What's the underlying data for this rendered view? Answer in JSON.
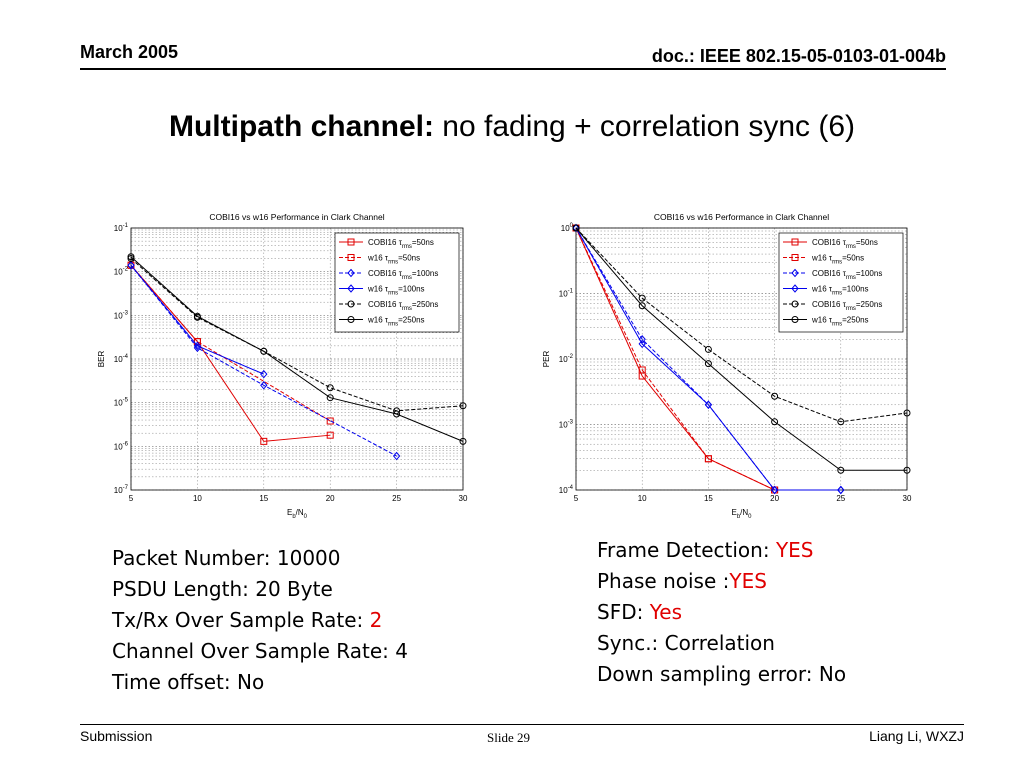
{
  "header": {
    "date": "March 2005",
    "doc": "doc.: IEEE 802.15-05-0103-01-004b"
  },
  "title": {
    "bold": "Multipath channel:",
    "rest": " no fading + correlation sync (6)"
  },
  "colors": {
    "red": "#e00000",
    "blue": "#0000ee",
    "black": "#000000"
  },
  "chart_data": [
    {
      "type": "line",
      "title": "COBI16 vs w16 Performance in Clark Channel",
      "ylabel": "BER",
      "xlabel_main": "E",
      "xlabel_sub1": "b",
      "xlabel_mid": "/N",
      "xlabel_sub2": "0",
      "xlim": [
        5,
        30
      ],
      "ylim_exp": [
        -7,
        -1
      ],
      "yscale": "log",
      "x_ticks": [
        "5",
        "10",
        "15",
        "20",
        "25",
        "30"
      ],
      "y_ticks": [
        {
          "base": "10",
          "exp": "-7"
        },
        {
          "base": "10",
          "exp": "-6"
        },
        {
          "base": "10",
          "exp": "-5"
        },
        {
          "base": "10",
          "exp": "-4"
        },
        {
          "base": "10",
          "exp": "-3"
        },
        {
          "base": "10",
          "exp": "-2"
        },
        {
          "base": "10",
          "exp": "-1"
        }
      ],
      "grid": true,
      "legend_position": "top-right",
      "series": [
        {
          "name": "COBI16 τrms=50ns",
          "legend_prefix": "COBI16 ",
          "legend_sub": "rms",
          "legend_suffix": "=50ns",
          "color": "#e00000",
          "dash": false,
          "marker": "square",
          "points": [
            [
              5,
              0.014
            ],
            [
              10,
              0.00025
            ],
            [
              15,
              1.3e-06
            ],
            [
              20,
              1.8e-06
            ]
          ]
        },
        {
          "name": "w16 τrms=50ns",
          "legend_prefix": "w16 ",
          "legend_sub": "rms",
          "legend_suffix": "=50ns",
          "color": "#e00000",
          "dash": true,
          "marker": "square",
          "points": [
            [
              5,
              0.014
            ],
            [
              10,
              0.00025
            ],
            [
              20,
              3.8e-06
            ]
          ]
        },
        {
          "name": "COBI16 τrms=100ns",
          "legend_prefix": "COBI16 ",
          "legend_sub": "rms",
          "legend_suffix": "=100ns",
          "color": "#0000ee",
          "dash": true,
          "marker": "diamond",
          "points": [
            [
              5,
              0.014
            ],
            [
              10,
              0.00018
            ],
            [
              15,
              2.5e-05
            ],
            [
              25,
              6e-07
            ]
          ]
        },
        {
          "name": "w16 τrms=100ns",
          "legend_prefix": "w16 ",
          "legend_sub": "rms",
          "legend_suffix": "=100ns",
          "color": "#0000ee",
          "dash": false,
          "marker": "diamond",
          "points": [
            [
              5,
              0.014
            ],
            [
              10,
              0.0002
            ],
            [
              15,
              4.5e-05
            ]
          ]
        },
        {
          "name": "COBI16 τrms=250ns",
          "legend_prefix": "COBI16 ",
          "legend_sub": "rms",
          "legend_suffix": "=250ns",
          "color": "#000000",
          "dash": true,
          "marker": "circle",
          "points": [
            [
              5,
              0.02
            ],
            [
              10,
              0.0009
            ],
            [
              15,
              0.00015
            ],
            [
              20,
              2.2e-05
            ],
            [
              25,
              6.5e-06
            ],
            [
              30,
              8.5e-06
            ]
          ]
        },
        {
          "name": "w16 τrms=250ns",
          "legend_prefix": "w16 ",
          "legend_sub": "rms",
          "legend_suffix": "=250ns",
          "color": "#000000",
          "dash": false,
          "marker": "circle",
          "points": [
            [
              5,
              0.022
            ],
            [
              10,
              0.00095
            ],
            [
              15,
              0.00015
            ],
            [
              20,
              1.3e-05
            ],
            [
              25,
              5.5e-06
            ],
            [
              30,
              1.3e-06
            ]
          ]
        }
      ]
    },
    {
      "type": "line",
      "title": "COBI16 vs w16 Performance in Clark Channel",
      "ylabel": "PER",
      "xlabel_main": "E",
      "xlabel_sub1": "b",
      "xlabel_mid": "/N",
      "xlabel_sub2": "0",
      "xlim": [
        5,
        30
      ],
      "ylim_exp": [
        -4,
        0
      ],
      "yscale": "log",
      "x_ticks": [
        "5",
        "10",
        "15",
        "20",
        "25",
        "30"
      ],
      "y_ticks": [
        {
          "base": "10",
          "exp": "-4"
        },
        {
          "base": "10",
          "exp": "-3"
        },
        {
          "base": "10",
          "exp": "-2"
        },
        {
          "base": "10",
          "exp": "-1"
        },
        {
          "base": "10",
          "exp": "0"
        }
      ],
      "grid": true,
      "legend_position": "top-right",
      "series": [
        {
          "name": "COBI16 τrms=50ns",
          "legend_prefix": "COBI16 ",
          "legend_sub": "rms",
          "legend_suffix": "=50ns",
          "color": "#e00000",
          "dash": false,
          "marker": "square",
          "points": [
            [
              5,
              1.0
            ],
            [
              10,
              0.0055
            ],
            [
              15,
              0.0003
            ],
            [
              20,
              0.0001
            ]
          ]
        },
        {
          "name": "w16 τrms=50ns",
          "legend_prefix": "w16 ",
          "legend_sub": "rms",
          "legend_suffix": "=50ns",
          "color": "#e00000",
          "dash": true,
          "marker": "square",
          "points": [
            [
              5,
              1.0
            ],
            [
              10,
              0.0068
            ],
            [
              15,
              0.0003
            ],
            [
              20,
              0.0001
            ]
          ]
        },
        {
          "name": "COBI16 τrms=100ns",
          "legend_prefix": "COBI16 ",
          "legend_sub": "rms",
          "legend_suffix": "=100ns",
          "color": "#0000ee",
          "dash": true,
          "marker": "diamond",
          "points": [
            [
              5,
              1.0
            ],
            [
              10,
              0.02
            ],
            [
              15,
              0.002
            ],
            [
              20,
              0.0001
            ],
            [
              25,
              0.0001
            ]
          ]
        },
        {
          "name": "w16 τrms=100ns",
          "legend_prefix": "w16 ",
          "legend_sub": "rms",
          "legend_suffix": "=100ns",
          "color": "#0000ee",
          "dash": false,
          "marker": "diamond",
          "points": [
            [
              5,
              1.0
            ],
            [
              10,
              0.017
            ],
            [
              15,
              0.002
            ],
            [
              20,
              0.0001
            ],
            [
              25,
              0.0001
            ]
          ]
        },
        {
          "name": "COBI16 τrms=250ns",
          "legend_prefix": "COBI16 ",
          "legend_sub": "rms",
          "legend_suffix": "=250ns",
          "color": "#000000",
          "dash": true,
          "marker": "circle",
          "points": [
            [
              5,
              1.0
            ],
            [
              10,
              0.085
            ],
            [
              15,
              0.014
            ],
            [
              20,
              0.0027
            ],
            [
              25,
              0.0011
            ],
            [
              30,
              0.0015
            ]
          ]
        },
        {
          "name": "w16 τrms=250ns",
          "legend_prefix": "w16 ",
          "legend_sub": "rms",
          "legend_suffix": "=250ns",
          "color": "#000000",
          "dash": false,
          "marker": "circle",
          "points": [
            [
              5,
              1.0
            ],
            [
              10,
              0.065
            ],
            [
              15,
              0.0085
            ],
            [
              20,
              0.0011
            ],
            [
              25,
              0.0002
            ],
            [
              30,
              0.0002
            ]
          ]
        }
      ]
    }
  ],
  "info_left": {
    "packet_number": "Packet Number: 10000",
    "psdu_length": "PSDU Length: 20 Byte",
    "txrx_label": "Tx/Rx Over Sample Rate: ",
    "txrx_value": "2",
    "channel_rate": "Channel Over Sample Rate: 4",
    "time_offset": "Time offset: No"
  },
  "info_right": {
    "frame_label": "Frame Detection: ",
    "frame_value": "YES",
    "phase_label": "Phase noise :",
    "phase_value": "YES",
    "sfd_label": "SFD: ",
    "sfd_value": "Yes",
    "sync": "Sync.: Correlation",
    "down_sampling": "Down sampling error: No"
  },
  "footer": {
    "left": "Submission",
    "slide": "Slide 29",
    "right": "Liang Li, WXZJ"
  }
}
